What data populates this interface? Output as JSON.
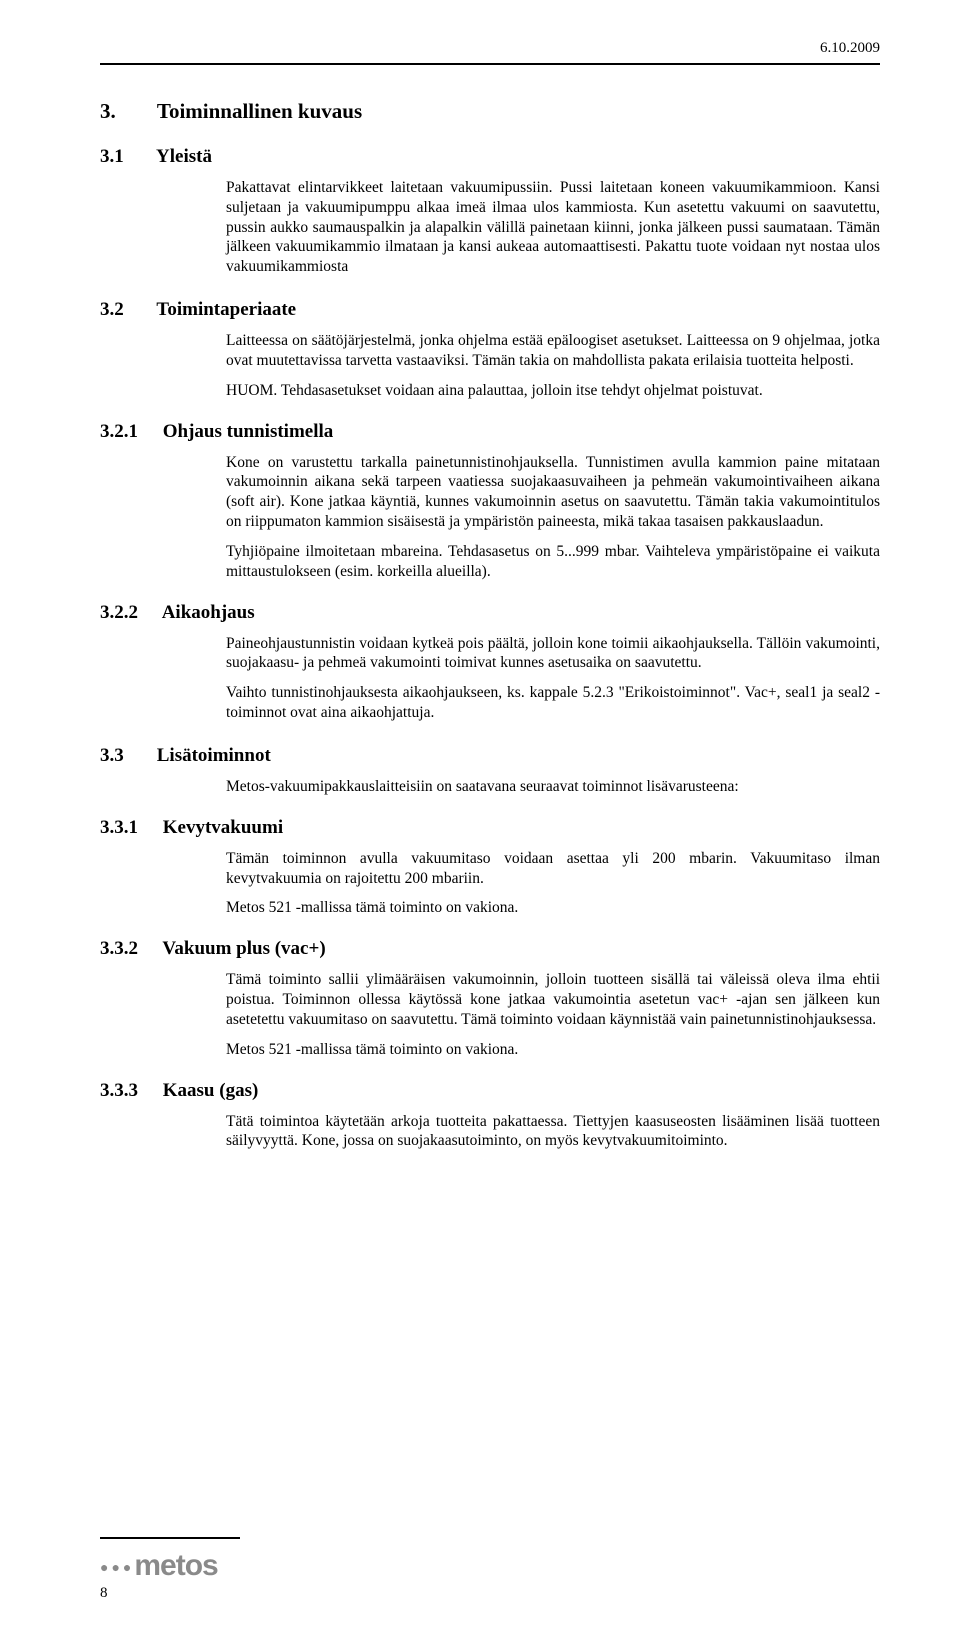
{
  "meta": {
    "date": "6.10.2009",
    "page_number": "8",
    "logo_text": "metos"
  },
  "colors": {
    "text": "#000000",
    "background": "#ffffff",
    "rule": "#000000",
    "logo": "#8a8a8a"
  },
  "typography": {
    "body_family": "Times New Roman",
    "body_size_pt": 11.5,
    "h1_size_pt": 16,
    "h2_size_pt": 14,
    "h3_size_pt": 14
  },
  "sections": {
    "s3": {
      "num": "3.",
      "title": "Toiminnallinen kuvaus"
    },
    "s31": {
      "num": "3.1",
      "title": "Yleistä",
      "p1": "Pakattavat elintarvikkeet laitetaan vakuumipussiin. Pussi laitetaan koneen vakuumikammioon. Kansi suljetaan ja vakuumipumppu alkaa imeä ilmaa ulos kammiosta. Kun asetettu vakuumi on saavutettu, pussin aukko saumauspalkin ja alapalkin välillä painetaan kiinni, jonka jälkeen pussi saumataan. Tämän jälkeen vakuumikammio ilmataan ja kansi aukeaa automaattisesti. Pakattu tuote voidaan nyt nostaa ulos vakuumikammiosta"
    },
    "s32": {
      "num": "3.2",
      "title": "Toimintaperiaate",
      "p1": "Laitteessa on säätöjärjestelmä, jonka ohjelma estää epäloogiset asetukset. Laitteessa on 9 ohjelmaa, jotka ovat muutettavissa tarvetta vastaaviksi. Tämän takia on mahdollista pakata erilaisia tuotteita helposti.",
      "p2": "HUOM. Tehdasasetukset voidaan aina palauttaa, jolloin itse tehdyt ohjelmat poistuvat."
    },
    "s321": {
      "num": "3.2.1",
      "title": "Ohjaus tunnistimella",
      "p1": "Kone on varustettu tarkalla painetunnistinohjauksella. Tunnistimen avulla kammion paine mitataan vakumoinnin aikana sekä tarpeen vaatiessa suojakaasuvaiheen ja pehmeän vakumointivaiheen aikana (soft air). Kone jatkaa käyntiä, kunnes vakumoinnin asetus on saavutettu. Tämän takia vakumointitulos on riippumaton kammion sisäisestä ja ympäristön paineesta, mikä takaa tasaisen pakkauslaadun.",
      "p2": "Tyhjiöpaine ilmoitetaan mbareina. Tehdasasetus on 5...999 mbar. Vaihteleva ympäristöpaine ei vaikuta mittaustulokseen (esim. korkeilla alueilla)."
    },
    "s322": {
      "num": "3.2.2",
      "title": "Aikaohjaus",
      "p1": "Paineohjaustunnistin voidaan kytkeä pois päältä, jolloin kone toimii aikaohjauksella. Tällöin vakumointi, suojakaasu- ja pehmeä vakumointi toimivat kunnes asetusaika on saavutettu.",
      "p2": "Vaihto tunnistinohjauksesta aikaohjaukseen, ks. kappale 5.2.3 \"Erikoistoiminnot\". Vac+, seal1 ja seal2 -toiminnot ovat aina aikaohjattuja."
    },
    "s33": {
      "num": "3.3",
      "title": "Lisätoiminnot",
      "p1": "Metos-vakuumipakkauslaitteisiin on saatavana seuraavat toiminnot lisävarusteena:"
    },
    "s331": {
      "num": "3.3.1",
      "title": "Kevytvakuumi",
      "p1": "Tämän toiminnon avulla vakuumitaso voidaan asettaa yli 200 mbarin. Vakuumitaso ilman kevytvakuumia on rajoitettu 200 mbariin.",
      "p2": "Metos 521 -mallissa tämä toiminto on vakiona."
    },
    "s332": {
      "num": "3.3.2",
      "title": "Vakuum plus (vac+)",
      "p1": "Tämä toiminto sallii ylimääräisen vakumoinnin, jolloin tuotteen sisällä tai väleissä oleva ilma ehtii poistua. Toiminnon ollessa käytössä kone jatkaa vakumointia asetetun vac+ -ajan sen jälkeen kun asetetettu vakuumitaso on saavutettu. Tämä toiminto voidaan käynnistää vain painetunnistinohjauksessa.",
      "p2": "Metos 521 -mallissa tämä toiminto on vakiona."
    },
    "s333": {
      "num": "3.3.3",
      "title": "Kaasu (gas)",
      "p1": "Tätä toimintoa käytetään arkoja tuotteita pakattaessa. Tiettyjen kaasuseosten lisääminen lisää tuotteen säilyvyyttä. Kone, jossa on suojakaasutoiminto, on myös kevytvakuumitoiminto."
    }
  }
}
